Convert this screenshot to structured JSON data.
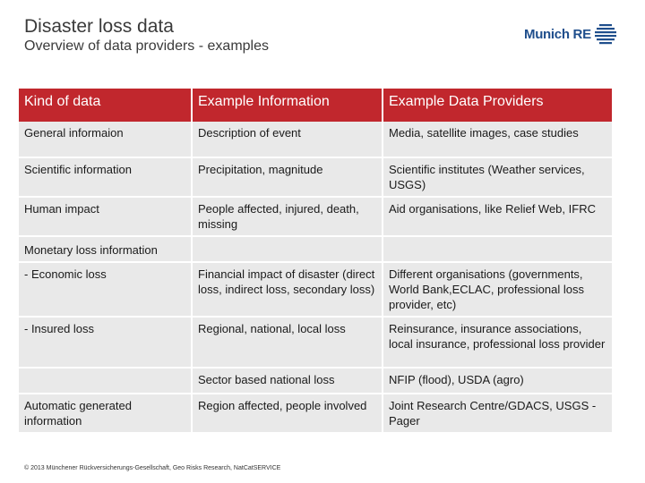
{
  "header": {
    "title": "Disaster loss data",
    "subtitle": "Overview of data providers - examples",
    "logo_text": "Munich RE"
  },
  "table": {
    "columns": [
      "Kind of data",
      "Example Information",
      "Example Data Providers"
    ],
    "rows": [
      {
        "kind": "General informaion",
        "info": "Description of event",
        "providers": "Media, satellite images, case studies"
      },
      {
        "kind": "Scientific information",
        "info": "Precipitation, magnitude",
        "providers": "Scientific institutes (Weather services, USGS)"
      },
      {
        "kind": "Human impact",
        "info": "People affected, injured, death, missing",
        "providers": "Aid organisations, like Relief Web, IFRC"
      },
      {
        "kind": "Monetary loss information",
        "info": "",
        "providers": ""
      },
      {
        "kind": "-  Economic loss",
        "info": "Financial impact of disaster (direct loss, indirect loss, secondary loss)",
        "providers": "Different organisations (governments, World Bank,ECLAC, professional loss provider, etc)"
      },
      {
        "kind": "-  Insured loss",
        "info": "Regional, national, local loss",
        "providers": "Reinsurance, insurance associations, local insurance, professional loss provider"
      },
      {
        "kind": "",
        "info": "Sector based national loss",
        "providers": "NFIP (flood), USDA (agro)"
      },
      {
        "kind": "Automatic generated information",
        "info": "Region affected, people involved",
        "providers": "Joint Research Centre/GDACS, USGS -Pager"
      }
    ]
  },
  "footer": {
    "text": "© 2013 Münchener Rückversicherungs-Gesellschaft, Geo Risks Research, NatCatSERVICE"
  },
  "colors": {
    "header_red": "#c1272d",
    "row_gray": "#e9e9e9",
    "logo_blue": "#1f4e8c"
  }
}
